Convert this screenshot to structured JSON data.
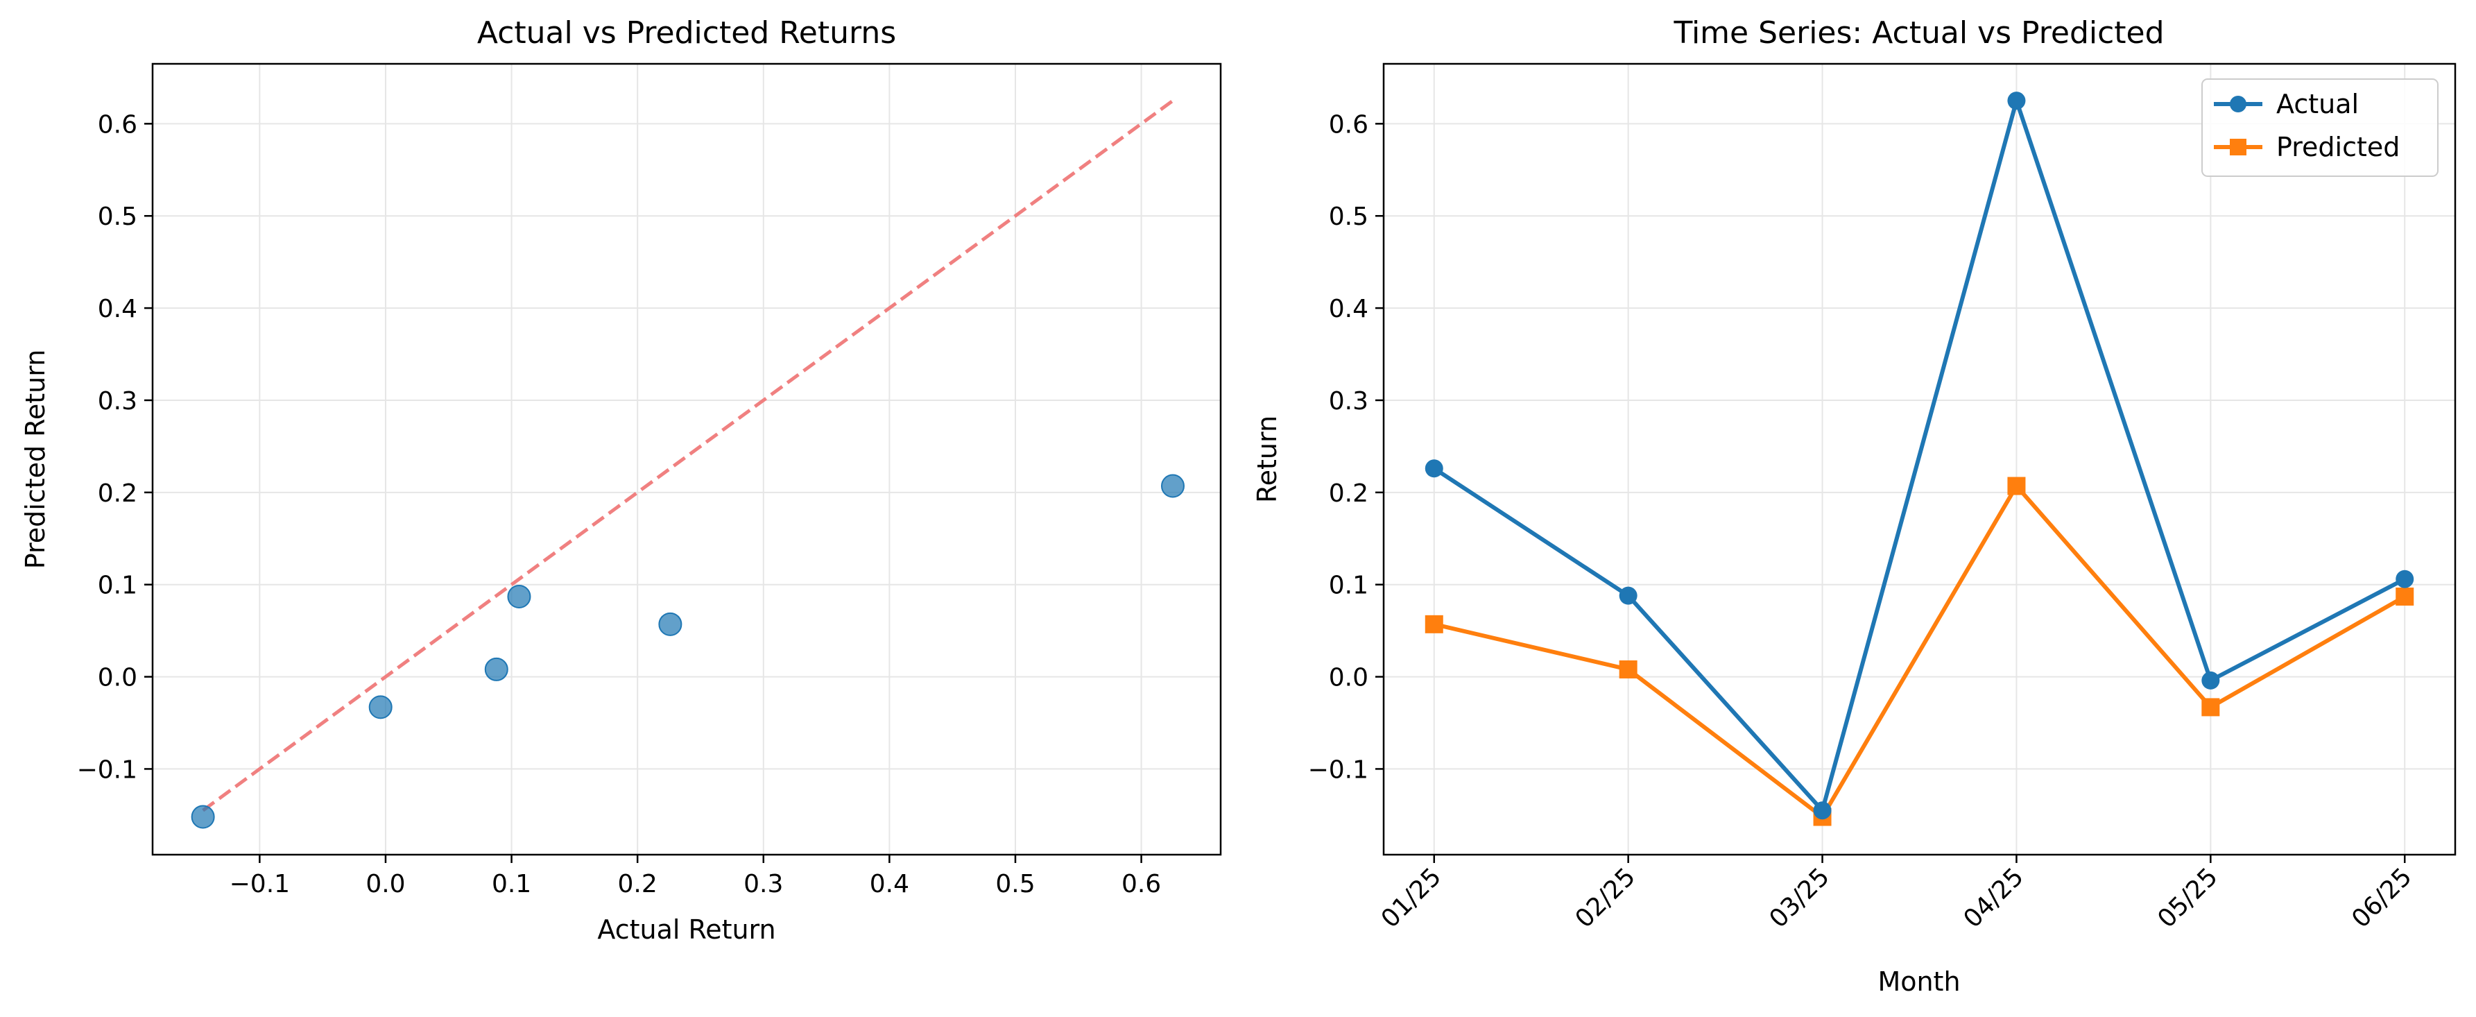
{
  "chart_data": [
    {
      "type": "scatter",
      "title": "Actual vs Predicted Returns",
      "xlabel": "Actual Return",
      "ylabel": "Predicted Return",
      "xlim": [
        -0.185,
        0.663
      ],
      "ylim": [
        -0.193,
        0.665
      ],
      "xticks": [
        -0.1,
        0.0,
        0.1,
        0.2,
        0.3,
        0.4,
        0.5,
        0.6
      ],
      "xtick_labels": [
        "−0.1",
        "0.0",
        "0.1",
        "0.2",
        "0.3",
        "0.4",
        "0.5",
        "0.6"
      ],
      "yticks": [
        -0.1,
        0.0,
        0.1,
        0.2,
        0.3,
        0.4,
        0.5,
        0.6
      ],
      "ytick_labels": [
        "−0.1",
        "0.0",
        "0.1",
        "0.2",
        "0.3",
        "0.4",
        "0.5",
        "0.6"
      ],
      "grid": true,
      "points": [
        {
          "x": -0.145,
          "y": -0.152
        },
        {
          "x": -0.004,
          "y": -0.033
        },
        {
          "x": 0.088,
          "y": 0.008
        },
        {
          "x": 0.106,
          "y": 0.087
        },
        {
          "x": 0.226,
          "y": 0.057
        },
        {
          "x": 0.625,
          "y": 0.207
        }
      ],
      "reference_line": {
        "x": [
          -0.145,
          0.625
        ],
        "y": [
          -0.145,
          0.625
        ],
        "style": "dashed",
        "color": "#f08080"
      },
      "point_color": "#1f77b4"
    },
    {
      "type": "line",
      "title": "Time Series: Actual vs Predicted",
      "xlabel": "Month",
      "ylabel": "Return",
      "categories": [
        "01/25",
        "02/25",
        "03/25",
        "04/25",
        "05/25",
        "06/25"
      ],
      "ylim": [
        -0.193,
        0.665
      ],
      "yticks": [
        -0.1,
        0.0,
        0.1,
        0.2,
        0.3,
        0.4,
        0.5,
        0.6
      ],
      "ytick_labels": [
        "−0.1",
        "0.0",
        "0.1",
        "0.2",
        "0.3",
        "0.4",
        "0.5",
        "0.6"
      ],
      "grid": true,
      "legend_position": "top-right",
      "series": [
        {
          "name": "Actual",
          "values": [
            0.226,
            0.088,
            -0.145,
            0.625,
            -0.004,
            0.106
          ],
          "color": "#1f77b4",
          "marker": "circle"
        },
        {
          "name": "Predicted",
          "values": [
            0.057,
            0.008,
            -0.152,
            0.207,
            -0.033,
            0.087
          ],
          "color": "#ff7f0e",
          "marker": "square"
        }
      ]
    }
  ]
}
